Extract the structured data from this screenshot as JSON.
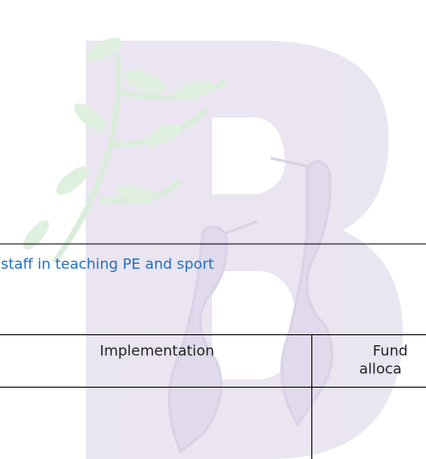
{
  "section_heading": "staff in teaching PE and sport",
  "table": {
    "headers": [
      [
        "Implementation"
      ],
      [
        "Fund",
        "alloca"
      ]
    ]
  }
}
